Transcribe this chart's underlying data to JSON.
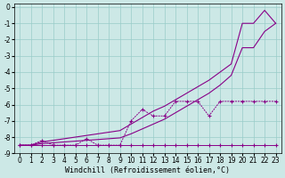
{
  "background_color": "#cce8e6",
  "grid_color": "#99ccc9",
  "line_color": "#880088",
  "x": [
    0,
    1,
    2,
    3,
    4,
    5,
    6,
    7,
    8,
    9,
    10,
    11,
    12,
    13,
    14,
    15,
    16,
    17,
    18,
    19,
    20,
    21,
    22,
    23
  ],
  "flat_line": [
    -8.5,
    -8.5,
    -8.5,
    -8.5,
    -8.5,
    -8.5,
    -8.5,
    -8.5,
    -8.5,
    -8.5,
    -8.5,
    -8.5,
    -8.5,
    -8.5,
    -8.5,
    -8.5,
    -8.5,
    -8.5,
    -8.5,
    -8.5,
    -8.5,
    -8.5,
    -8.5,
    -8.5
  ],
  "mid_markers": [
    -8.5,
    -8.5,
    -8.2,
    -8.5,
    -8.5,
    -8.5,
    -8.1,
    -8.5,
    -8.5,
    -8.5,
    -7.0,
    -6.3,
    -6.7,
    -6.7,
    -5.8,
    -5.8,
    -5.8,
    -6.7,
    -5.8,
    -5.8,
    -5.8,
    -5.8,
    -5.8,
    -5.8
  ],
  "upper_solid": [
    -8.5,
    -8.5,
    -8.3,
    -8.2,
    -8.1,
    -8.0,
    -7.9,
    -7.8,
    -7.7,
    -7.6,
    -7.2,
    -6.8,
    -6.4,
    -6.1,
    -5.7,
    -5.3,
    -4.9,
    -4.5,
    -4.0,
    -3.5,
    -1.0,
    -1.0,
    -0.2,
    -1.0
  ],
  "lower_solid": [
    -8.5,
    -8.5,
    -8.4,
    -8.35,
    -8.3,
    -8.25,
    -8.2,
    -8.15,
    -8.1,
    -8.05,
    -7.8,
    -7.5,
    -7.2,
    -6.9,
    -6.5,
    -6.1,
    -5.7,
    -5.3,
    -4.8,
    -4.2,
    -2.5,
    -2.5,
    -1.5,
    -1.0
  ],
  "ylim": [
    -9.0,
    0.2
  ],
  "xlim": [
    -0.5,
    23.5
  ],
  "yticks": [
    0,
    -1,
    -2,
    -3,
    -4,
    -5,
    -6,
    -7,
    -8,
    -9
  ],
  "xticks": [
    0,
    1,
    2,
    3,
    4,
    5,
    6,
    7,
    8,
    9,
    10,
    11,
    12,
    13,
    14,
    15,
    16,
    17,
    18,
    19,
    20,
    21,
    22,
    23
  ],
  "xlabel": "Windchill (Refroidissement éolien,°C)",
  "tick_fontsize": 5.5,
  "label_fontsize": 6.0
}
